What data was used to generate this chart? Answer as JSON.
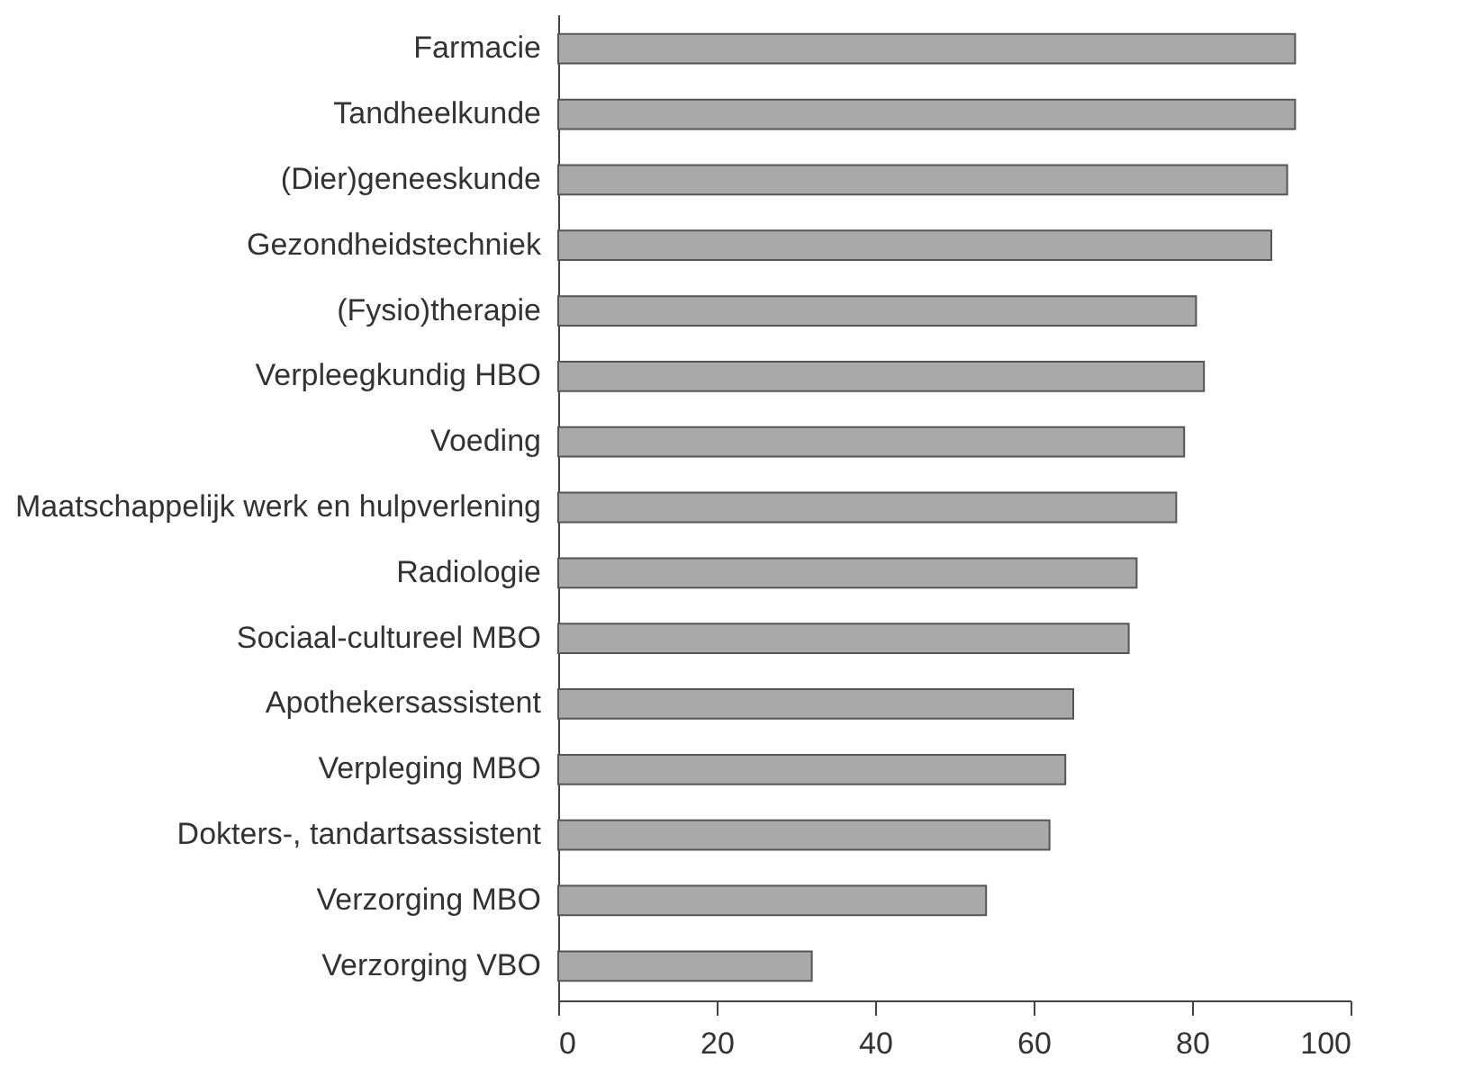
{
  "chart_data": {
    "type": "bar",
    "orientation": "horizontal",
    "categories": [
      "Farmacie",
      "Tandheelkunde",
      "(Dier)geneeskunde",
      "Gezondheidstechniek",
      "(Fysio)therapie",
      "Verpleegkundig HBO",
      "Voeding",
      "Maatschappelijk werk en hulpverlening",
      "Radiologie",
      "Sociaal-cultureel MBO",
      "Apothekersassistent",
      "Verpleging MBO",
      "Dokters-, tandartsassistent",
      "Verzorging MBO",
      "Verzorging VBO"
    ],
    "values": [
      93,
      93,
      92,
      90,
      80.5,
      81.5,
      79,
      78,
      73,
      72,
      65,
      64,
      62,
      54,
      32
    ],
    "color": "#a9a9a9",
    "xlim": [
      0,
      100
    ],
    "xticks": [
      0,
      20,
      40,
      60,
      80,
      100
    ],
    "grid": false
  }
}
